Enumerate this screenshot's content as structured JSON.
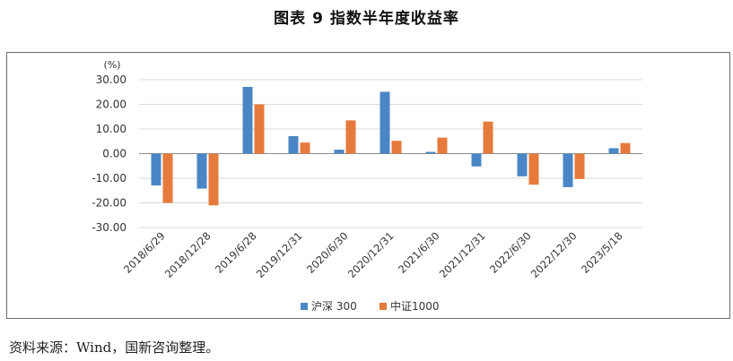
{
  "title": "图表 9  指数半年度收益率",
  "source": "资料来源：Wind，国新咨询整理。",
  "colors": {
    "series_1": "#4a86c5",
    "series_2": "#e67a3c",
    "grid": "#d9d9d9",
    "axis": "#8c8c8c"
  },
  "chart_data": {
    "type": "bar",
    "unit_label": "(%)",
    "categories": [
      "2018/6/29",
      "2018/12/28",
      "2019/6/28",
      "2019/12/31",
      "2020/6/30",
      "2020/12/31",
      "2021/6/30",
      "2021/12/31",
      "2022/6/30",
      "2022/12/30",
      "2023/5/18"
    ],
    "series": [
      {
        "name": "沪深 300",
        "color": "#4a86c5",
        "values": [
          -12.9,
          -14.2,
          27.1,
          7.1,
          1.6,
          25.1,
          0.7,
          -5.2,
          -9.2,
          -13.6,
          2.2
        ]
      },
      {
        "name": "中证1000",
        "color": "#e67a3c",
        "values": [
          -20.0,
          -21.0,
          20.0,
          4.5,
          13.5,
          5.2,
          6.5,
          13.0,
          -12.6,
          -10.3,
          4.3
        ]
      }
    ],
    "ylim": [
      -30,
      30
    ],
    "yticks": [
      "30.00",
      "20.00",
      "10.00",
      "0.00",
      "-10.00",
      "-20.00",
      "-30.00"
    ],
    "ytick_values": [
      30,
      20,
      10,
      0,
      -10,
      -20,
      -30
    ],
    "grid": true,
    "legend_position": "bottom"
  }
}
